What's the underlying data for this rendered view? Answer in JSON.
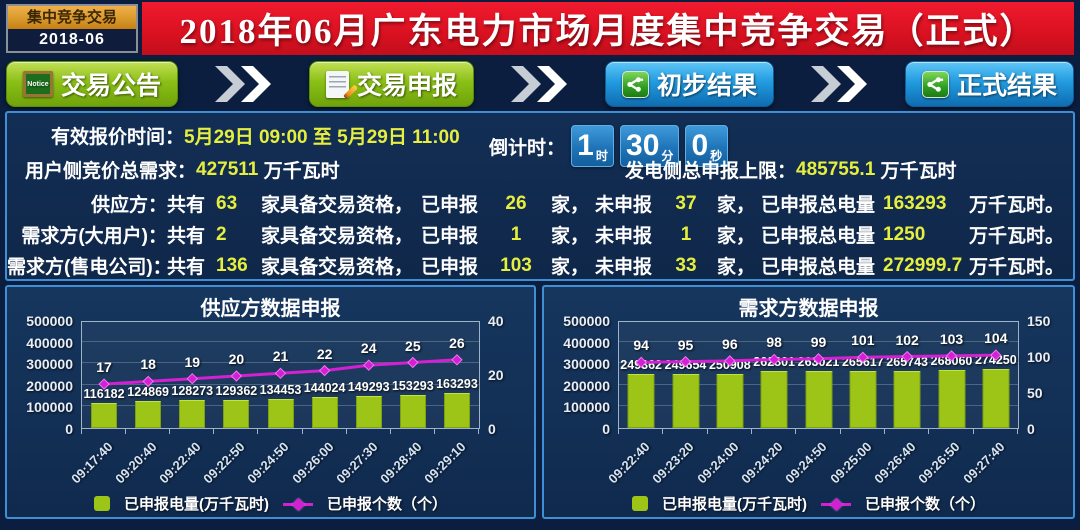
{
  "window": {
    "badge_line1": "集中竞争交易",
    "badge_line2": "2018-06",
    "title": "2018年06月广东电力市场月度集中竞争交易（正式）"
  },
  "nav": {
    "buttons": [
      {
        "label": "交易公告",
        "style": "green",
        "icon": "notice-board-icon"
      },
      {
        "label": "交易申报",
        "style": "green",
        "icon": "document-pencil-icon"
      },
      {
        "label": "初步结果",
        "style": "blue",
        "icon": "share-result-icon"
      },
      {
        "label": "正式结果",
        "style": "blue",
        "icon": "share-result-icon"
      }
    ],
    "notice_icon_text": "Notice"
  },
  "info": {
    "quote_time_label": "有效报价时间：",
    "quote_time_value": "5月29日 09:00 至 5月29日 11:00",
    "countdown_label": "倒计时：",
    "countdown": {
      "hours": "1",
      "hours_unit": "时",
      "minutes": "30",
      "minutes_unit": "分",
      "seconds": "0",
      "seconds_unit": "秒"
    },
    "user_demand_label": "用户侧竞价总需求：",
    "user_demand_value": "427511",
    "user_demand_unit": "万千瓦时",
    "gen_limit_label": "发电侧总申报上限：",
    "gen_limit_value": "485755.1",
    "gen_limit_unit": "万千瓦时",
    "labels": {
      "total_prefix": "共有",
      "qualified": "家具备交易资格，",
      "declared": "已申报",
      "jia_comma": "家，",
      "undeclared": "未申报",
      "volume_label": "已申报总电量"
    },
    "rows": [
      {
        "party": "供应方：",
        "total": "63",
        "declared": "26",
        "undeclared": "37",
        "volume": "163293",
        "volume_unit": "万千瓦时。"
      },
      {
        "party": "需求方(大用户)：",
        "total": "2",
        "declared": "1",
        "undeclared": "1",
        "volume": "1250",
        "volume_unit": "万千瓦时。"
      },
      {
        "party": "需求方(售电公司)：",
        "total": "136",
        "declared": "103",
        "undeclared": "33",
        "volume": "272999.7",
        "volume_unit": "万千瓦时。"
      }
    ]
  },
  "chart_data": [
    {
      "type": "combo",
      "title": "供应方数据申报",
      "categories": [
        "09:17:40",
        "09:20:40",
        "09:22:40",
        "09:22:50",
        "09:24:50",
        "09:26:00",
        "09:27:30",
        "09:28:40",
        "09:29:10"
      ],
      "series": [
        {
          "name": "已申报电量(万千瓦时)",
          "type": "bar",
          "axis": "left",
          "color": "#9dc517",
          "values": [
            116182,
            124869,
            128273,
            129362,
            134453,
            144024,
            149293,
            153293,
            163293
          ]
        },
        {
          "name": "已申报个数（个）",
          "type": "line",
          "axis": "right",
          "color": "#d320d3",
          "values": [
            17,
            18,
            19,
            20,
            21,
            22,
            24,
            25,
            26
          ]
        }
      ],
      "left_axis": {
        "min": 0,
        "max": 500000,
        "ticks": [
          0,
          100000,
          200000,
          300000,
          400000,
          500000
        ]
      },
      "right_axis": {
        "min": 0,
        "max": 40,
        "ticks": [
          0,
          20,
          40
        ]
      },
      "grid": true,
      "legend_position": "bottom"
    },
    {
      "type": "combo",
      "title": "需求方数据申报",
      "categories": [
        "09:22:40",
        "09:23:20",
        "09:24:00",
        "09:24:20",
        "09:24:50",
        "09:25:00",
        "09:26:40",
        "09:26:50",
        "09:27:40"
      ],
      "series": [
        {
          "name": "已申报电量(万千瓦时)",
          "type": "bar",
          "axis": "left",
          "color": "#9dc517",
          "values": [
            249362,
            249654,
            250908,
            262801,
            263021,
            265617,
            265743,
            268060,
            274250
          ]
        },
        {
          "name": "已申报个数（个）",
          "type": "line",
          "axis": "right",
          "color": "#d320d3",
          "values": [
            94,
            95,
            96,
            98,
            99,
            101,
            102,
            103,
            104
          ]
        }
      ],
      "left_axis": {
        "min": 0,
        "max": 500000,
        "ticks": [
          0,
          100000,
          200000,
          300000,
          400000,
          500000
        ]
      },
      "right_axis": {
        "min": 0,
        "max": 150,
        "ticks": [
          0,
          50,
          100,
          150
        ]
      },
      "grid": true,
      "legend_position": "bottom"
    }
  ],
  "colors": {
    "background_navy": "#0b1e3f",
    "banner_red": "#d91120",
    "button_green": "#8bbf17",
    "button_blue": "#229be0",
    "value_yellow": "#e6ee3e",
    "bar_green": "#9dc517",
    "line_magenta": "#d320d3",
    "panel_border": "#3f8fd4",
    "countdown_box_blue": "#1f74b8",
    "badge_orange": "#d99a2b"
  }
}
